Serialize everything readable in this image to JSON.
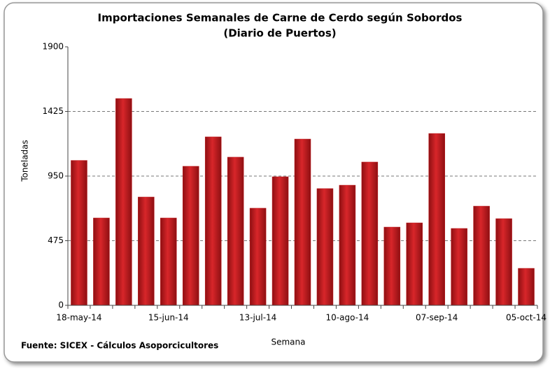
{
  "chart_data": {
    "type": "bar",
    "title": "Importaciones Semanales de Carne de Cerdo según Sobordos",
    "subtitle": "(Diario de Puertos)",
    "x_label": "Semana",
    "y_label": "Toneladas",
    "source": "Fuente: SICEX - Cálculos Asoporcicultores",
    "categories": [
      "18-may-14",
      null,
      null,
      null,
      "15-jun-14",
      null,
      null,
      null,
      "13-jul-14",
      null,
      null,
      null,
      "10-ago-14",
      null,
      null,
      null,
      "07-sep-14",
      null,
      null,
      null,
      "05-oct-14"
    ],
    "values": [
      1065,
      642,
      1520,
      796,
      642,
      1022,
      1238,
      1089,
      714,
      945,
      1222,
      858,
      883,
      1053,
      575,
      606,
      1263,
      565,
      729,
      637,
      272
    ],
    "color": "#c0181c",
    "ylim": [
      0,
      1900
    ],
    "yticks": [
      0,
      475,
      950,
      1425,
      1900
    ],
    "grid": true
  }
}
